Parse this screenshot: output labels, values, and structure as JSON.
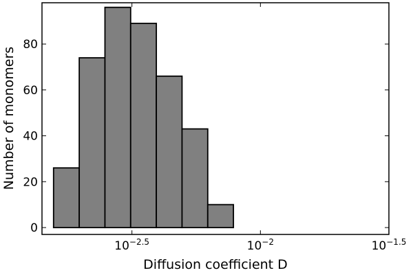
{
  "chart_data": {
    "type": "bar",
    "subtype": "histogram",
    "title": "",
    "xlabel": "Diffusion coefficient D",
    "ylabel": "Number of monomers",
    "x_scale": "log",
    "xlim": [
      -2.85,
      -1.5
    ],
    "ylim": [
      -3,
      98
    ],
    "x_ticks": [
      {
        "value": -2.5,
        "label_base": "10",
        "label_exp": "−2.5"
      },
      {
        "value": -2.0,
        "label_base": "10",
        "label_exp": "−2"
      },
      {
        "value": -1.5,
        "label_base": "10",
        "label_exp": "−1.5"
      }
    ],
    "y_ticks": [
      {
        "value": 0,
        "label": "0"
      },
      {
        "value": 20,
        "label": "20"
      },
      {
        "value": 40,
        "label": "40"
      },
      {
        "value": 60,
        "label": "60"
      },
      {
        "value": 80,
        "label": "80"
      }
    ],
    "bins": [
      {
        "x_start": -2.805,
        "x_end": -2.705,
        "value": 26
      },
      {
        "x_start": -2.705,
        "x_end": -2.605,
        "value": 74
      },
      {
        "x_start": -2.605,
        "x_end": -2.505,
        "value": 96
      },
      {
        "x_start": -2.505,
        "x_end": -2.405,
        "value": 89
      },
      {
        "x_start": -2.405,
        "x_end": -2.305,
        "value": 66
      },
      {
        "x_start": -2.305,
        "x_end": -2.205,
        "value": 43
      },
      {
        "x_start": -2.205,
        "x_end": -2.105,
        "value": 10
      }
    ],
    "grid": false,
    "legend": "none",
    "bar_color": "#808080",
    "edge_color": "#000000"
  }
}
